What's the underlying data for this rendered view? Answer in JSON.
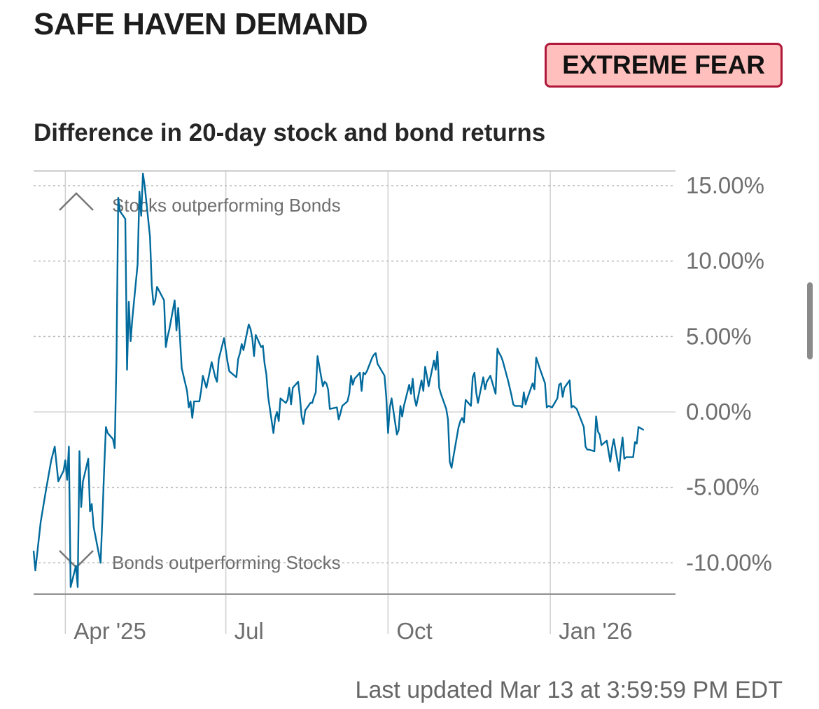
{
  "header": {
    "title": "SAFE HAVEN DEMAND",
    "badge": "EXTREME FEAR",
    "badge_colors": {
      "background": "#ffc0bd",
      "border": "#b0193a"
    }
  },
  "footer": {
    "last_updated": "Last updated Mar 13 at 3:59:59 PM EDT"
  },
  "chart_data": {
    "type": "line",
    "title": "Difference in 20-day stock and bond returns",
    "annotations": {
      "upper": "Stocks outperforming Bonds",
      "lower": "Bonds outperforming Stocks"
    },
    "yticks": [
      {
        "value": 15,
        "label": "15.00%"
      },
      {
        "value": 10,
        "label": "10.00%"
      },
      {
        "value": 5,
        "label": "5.00%"
      },
      {
        "value": 0,
        "label": "0.00%"
      },
      {
        "value": -5,
        "label": "-5.00%"
      },
      {
        "value": -10,
        "label": "-10.00%"
      }
    ],
    "xticks": [
      {
        "date": "2025-04-01",
        "label": "Apr '25"
      },
      {
        "date": "2025-07-01",
        "label": "Jul"
      },
      {
        "date": "2025-10-01",
        "label": "Oct"
      },
      {
        "date": "2026-01-01",
        "label": "Jan '26"
      }
    ],
    "xlim": [
      "2025-03-14",
      "2026-03-13"
    ],
    "ylim": [
      -12,
      16
    ],
    "line_color": "#006a9c",
    "grid": true,
    "series": [
      {
        "values": [
          [
            "2025-03-14",
            -9.2
          ],
          [
            "2025-03-15",
            -10.5
          ],
          [
            "2025-03-18",
            -7.3
          ],
          [
            "2025-03-21",
            -5.2
          ],
          [
            "2025-03-24",
            -3.2
          ],
          [
            "2025-03-26",
            -2.3
          ],
          [
            "2025-03-28",
            -4.6
          ],
          [
            "2025-03-31",
            -3.9
          ],
          [
            "2025-04-01",
            -3.2
          ],
          [
            "2025-04-02",
            -4.5
          ],
          [
            "2025-04-03",
            -2.3
          ],
          [
            "2025-04-04",
            -11.6
          ],
          [
            "2025-04-07",
            -10.2
          ],
          [
            "2025-04-08",
            -11.6
          ],
          [
            "2025-04-09",
            -2.6
          ],
          [
            "2025-04-10",
            -6.3
          ],
          [
            "2025-04-11",
            -4.6
          ],
          [
            "2025-04-14",
            -3.1
          ],
          [
            "2025-04-15",
            -6.6
          ],
          [
            "2025-04-16",
            -6.1
          ],
          [
            "2025-04-17",
            -7.6
          ],
          [
            "2025-04-21",
            -10.0
          ],
          [
            "2025-04-22",
            -7.0
          ],
          [
            "2025-04-23",
            -3.8
          ],
          [
            "2025-04-24",
            -1.0
          ],
          [
            "2025-04-25",
            -1.4
          ],
          [
            "2025-04-28",
            -1.8
          ],
          [
            "2025-04-29",
            -2.4
          ],
          [
            "2025-04-30",
            3.5
          ],
          [
            "2025-05-01",
            14.2
          ],
          [
            "2025-05-02",
            13.3
          ],
          [
            "2025-05-05",
            12.8
          ],
          [
            "2025-05-06",
            2.8
          ],
          [
            "2025-05-07",
            7.3
          ],
          [
            "2025-05-08",
            4.7
          ],
          [
            "2025-05-09",
            6.2
          ],
          [
            "2025-05-12",
            9.8
          ],
          [
            "2025-05-13",
            14.6
          ],
          [
            "2025-05-14",
            13.0
          ],
          [
            "2025-05-15",
            15.8
          ],
          [
            "2025-05-16",
            15.0
          ],
          [
            "2025-05-19",
            11.6
          ],
          [
            "2025-05-20",
            8.4
          ],
          [
            "2025-05-21",
            7.1
          ],
          [
            "2025-05-22",
            7.4
          ],
          [
            "2025-05-23",
            8.3
          ],
          [
            "2025-05-27",
            7.4
          ],
          [
            "2025-05-28",
            4.3
          ],
          [
            "2025-05-29",
            5.0
          ],
          [
            "2025-05-30",
            5.5
          ],
          [
            "2025-06-02",
            7.4
          ],
          [
            "2025-06-03",
            5.4
          ],
          [
            "2025-06-04",
            6.9
          ],
          [
            "2025-06-05",
            4.9
          ],
          [
            "2025-06-06",
            2.9
          ],
          [
            "2025-06-09",
            1.4
          ],
          [
            "2025-06-10",
            0.3
          ],
          [
            "2025-06-11",
            0.7
          ],
          [
            "2025-06-12",
            -0.4
          ],
          [
            "2025-06-13",
            0.7
          ],
          [
            "2025-06-16",
            0.7
          ],
          [
            "2025-06-17",
            1.4
          ],
          [
            "2025-06-18",
            2.4
          ],
          [
            "2025-06-20",
            1.6
          ],
          [
            "2025-06-23",
            3.3
          ],
          [
            "2025-06-24",
            2.8
          ],
          [
            "2025-06-25",
            2.3
          ],
          [
            "2025-06-26",
            2.0
          ],
          [
            "2025-06-27",
            3.5
          ],
          [
            "2025-06-30",
            4.9
          ],
          [
            "2025-07-01",
            4.1
          ],
          [
            "2025-07-02",
            3.3
          ],
          [
            "2025-07-03",
            2.7
          ],
          [
            "2025-07-07",
            2.3
          ],
          [
            "2025-07-08",
            3.5
          ],
          [
            "2025-07-09",
            3.9
          ],
          [
            "2025-07-10",
            4.5
          ],
          [
            "2025-07-11",
            4.1
          ],
          [
            "2025-07-14",
            5.8
          ],
          [
            "2025-07-15",
            5.5
          ],
          [
            "2025-07-16",
            4.9
          ],
          [
            "2025-07-17",
            3.7
          ],
          [
            "2025-07-18",
            5.1
          ],
          [
            "2025-07-21",
            4.3
          ],
          [
            "2025-07-22",
            4.4
          ],
          [
            "2025-07-23",
            3.2
          ],
          [
            "2025-07-24",
            2.5
          ],
          [
            "2025-07-25",
            1.0
          ],
          [
            "2025-07-28",
            -1.4
          ],
          [
            "2025-07-29",
            -0.4
          ],
          [
            "2025-07-30",
            0.0
          ],
          [
            "2025-07-31",
            -0.6
          ],
          [
            "2025-08-01",
            0.9
          ],
          [
            "2025-08-04",
            0.6
          ],
          [
            "2025-08-05",
            0.8
          ],
          [
            "2025-08-06",
            1.6
          ],
          [
            "2025-08-07",
            0.5
          ],
          [
            "2025-08-08",
            1.6
          ],
          [
            "2025-08-11",
            2.0
          ],
          [
            "2025-08-12",
            1.0
          ],
          [
            "2025-08-13",
            -0.3
          ],
          [
            "2025-08-14",
            -0.8
          ],
          [
            "2025-08-15",
            0.1
          ],
          [
            "2025-08-18",
            0.6
          ],
          [
            "2025-08-19",
            0.6
          ],
          [
            "2025-08-20",
            1.0
          ],
          [
            "2025-08-21",
            1.3
          ],
          [
            "2025-08-22",
            3.7
          ],
          [
            "2025-08-25",
            1.7
          ],
          [
            "2025-08-26",
            2.0
          ],
          [
            "2025-08-27",
            1.9
          ],
          [
            "2025-08-28",
            1.5
          ],
          [
            "2025-08-29",
            0.2
          ],
          [
            "2025-09-02",
            0.3
          ],
          [
            "2025-09-03",
            -0.5
          ],
          [
            "2025-09-04",
            -0.1
          ],
          [
            "2025-09-05",
            0.4
          ],
          [
            "2025-09-08",
            0.7
          ],
          [
            "2025-09-09",
            1.2
          ],
          [
            "2025-09-10",
            2.4
          ],
          [
            "2025-09-11",
            1.8
          ],
          [
            "2025-09-12",
            2.2
          ],
          [
            "2025-09-15",
            2.6
          ],
          [
            "2025-09-16",
            1.4
          ],
          [
            "2025-09-17",
            2.6
          ],
          [
            "2025-09-18",
            2.5
          ],
          [
            "2025-09-19",
            2.7
          ],
          [
            "2025-09-22",
            3.6
          ],
          [
            "2025-09-23",
            3.8
          ],
          [
            "2025-09-24",
            3.9
          ],
          [
            "2025-09-25",
            3.2
          ],
          [
            "2025-09-26",
            3.0
          ],
          [
            "2025-09-29",
            2.4
          ],
          [
            "2025-09-30",
            1.0
          ],
          [
            "2025-10-01",
            -1.4
          ],
          [
            "2025-10-02",
            0.3
          ],
          [
            "2025-10-03",
            0.9
          ],
          [
            "2025-10-06",
            -1.5
          ],
          [
            "2025-10-07",
            -1.2
          ],
          [
            "2025-10-08",
            0.4
          ],
          [
            "2025-10-09",
            -0.3
          ],
          [
            "2025-10-10",
            0.4
          ],
          [
            "2025-10-13",
            1.8
          ],
          [
            "2025-10-14",
            1.2
          ],
          [
            "2025-10-15",
            2.2
          ],
          [
            "2025-10-16",
            0.9
          ],
          [
            "2025-10-17",
            0.4
          ],
          [
            "2025-10-20",
            2.1
          ],
          [
            "2025-10-21",
            1.4
          ],
          [
            "2025-10-22",
            3.0
          ],
          [
            "2025-10-23",
            2.4
          ],
          [
            "2025-10-24",
            1.7
          ],
          [
            "2025-10-27",
            3.4
          ],
          [
            "2025-10-28",
            2.8
          ],
          [
            "2025-10-29",
            4.0
          ],
          [
            "2025-10-30",
            1.6
          ],
          [
            "2025-10-31",
            1.2
          ],
          [
            "2025-11-03",
            0.2
          ],
          [
            "2025-11-04",
            -0.5
          ],
          [
            "2025-11-05",
            -3.3
          ],
          [
            "2025-11-06",
            -3.7
          ],
          [
            "2025-11-07",
            -3.0
          ],
          [
            "2025-11-10",
            -1.0
          ],
          [
            "2025-11-11",
            -0.6
          ],
          [
            "2025-11-12",
            -0.4
          ],
          [
            "2025-11-13",
            -0.7
          ],
          [
            "2025-11-14",
            0.8
          ],
          [
            "2025-11-17",
            0.4
          ],
          [
            "2025-11-18",
            2.3
          ],
          [
            "2025-11-19",
            2.6
          ],
          [
            "2025-11-20",
            1.3
          ],
          [
            "2025-11-21",
            0.6
          ],
          [
            "2025-11-24",
            2.3
          ],
          [
            "2025-11-25",
            1.5
          ],
          [
            "2025-11-26",
            2.0
          ],
          [
            "2025-11-28",
            2.4
          ],
          [
            "2025-12-01",
            1.2
          ],
          [
            "2025-12-02",
            4.2
          ],
          [
            "2025-12-03",
            3.9
          ],
          [
            "2025-12-04",
            3.7
          ],
          [
            "2025-12-05",
            3.4
          ],
          [
            "2025-12-08",
            2.1
          ],
          [
            "2025-12-09",
            1.6
          ],
          [
            "2025-12-10",
            1.1
          ],
          [
            "2025-12-11",
            0.5
          ],
          [
            "2025-12-12",
            0.4
          ],
          [
            "2025-12-15",
            0.4
          ],
          [
            "2025-12-16",
            0.3
          ],
          [
            "2025-12-17",
            1.3
          ],
          [
            "2025-12-18",
            0.5
          ],
          [
            "2025-12-19",
            0.9
          ],
          [
            "2025-12-22",
            1.9
          ],
          [
            "2025-12-23",
            1.5
          ],
          [
            "2025-12-24",
            3.6
          ],
          [
            "2025-12-26",
            2.9
          ],
          [
            "2025-12-29",
            1.9
          ],
          [
            "2025-12-30",
            0.3
          ],
          [
            "2025-12-31",
            0.4
          ],
          [
            "2026-01-02",
            0.3
          ],
          [
            "2026-01-05",
            0.9
          ],
          [
            "2026-01-06",
            1.8
          ],
          [
            "2026-01-07",
            1.9
          ],
          [
            "2026-01-08",
            1.0
          ],
          [
            "2026-01-09",
            1.6
          ],
          [
            "2026-01-12",
            2.1
          ],
          [
            "2026-01-13",
            0.3
          ],
          [
            "2026-01-14",
            0.4
          ],
          [
            "2026-01-15",
            0.3
          ],
          [
            "2026-01-16",
            0.2
          ],
          [
            "2026-01-20",
            -1.0
          ],
          [
            "2026-01-21",
            -2.3
          ],
          [
            "2026-01-22",
            -2.5
          ],
          [
            "2026-01-23",
            -2.5
          ],
          [
            "2026-01-26",
            -2.6
          ],
          [
            "2026-01-27",
            -0.3
          ],
          [
            "2026-01-28",
            -1.3
          ],
          [
            "2026-01-29",
            -1.5
          ],
          [
            "2026-01-30",
            -2.2
          ],
          [
            "2026-02-02",
            -1.9
          ],
          [
            "2026-02-03",
            -2.6
          ],
          [
            "2026-02-04",
            -3.3
          ],
          [
            "2026-02-05",
            -2.4
          ],
          [
            "2026-02-06",
            -1.8
          ],
          [
            "2026-02-09",
            -3.9
          ],
          [
            "2026-02-10",
            -2.6
          ],
          [
            "2026-02-11",
            -1.7
          ],
          [
            "2026-02-12",
            -3.1
          ],
          [
            "2026-02-13",
            -3.0
          ],
          [
            "2026-02-17",
            -3.0
          ],
          [
            "2026-02-18",
            -2.0
          ],
          [
            "2026-02-19",
            -2.1
          ],
          [
            "2026-02-20",
            -1.0
          ],
          [
            "2026-02-23",
            -1.2
          ]
        ]
      }
    ]
  }
}
